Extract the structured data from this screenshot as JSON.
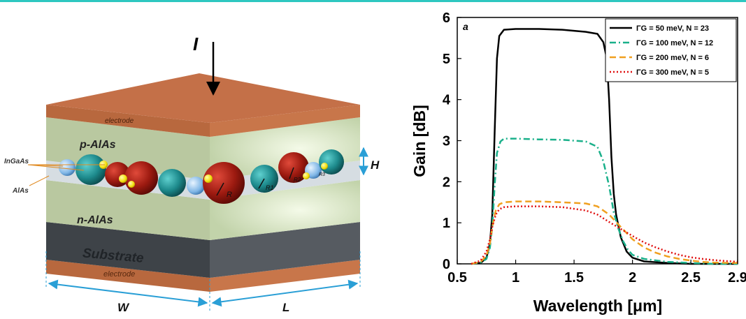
{
  "diagram": {
    "current_label": "I",
    "layers": {
      "top_electrode": "electrode",
      "p_layer": "p-AlAs",
      "n_layer": "n-AlAs",
      "substrate": "Substrate",
      "bottom_electrode": "electrode"
    },
    "callouts": {
      "dot_material": "InGaAs",
      "matrix_material": "AlAs"
    },
    "dimensions": {
      "height": "H",
      "width": "W",
      "length": "L"
    },
    "radius_labels": [
      "R",
      "R1",
      "R2",
      "R3"
    ],
    "colors": {
      "electrode": "#c8764a",
      "layer_green": "#c7d6b0",
      "substrate": "#4a4f54",
      "dot_red": "#9c1a10",
      "dot_teal": "#1d8a8c",
      "dot_blue": "#7fb6e6",
      "dot_yellow": "#f2df0a",
      "dimension_line": "#2a9fd6"
    }
  },
  "chart_data": {
    "type": "line",
    "panel_label": "a",
    "xlabel": "Wavelength [μm]",
    "ylabel": "Gain [dB]",
    "xlim": [
      0.5,
      2.9
    ],
    "ylim": [
      0,
      6
    ],
    "xticks": [
      0.5,
      1,
      1.5,
      2,
      2.5,
      2.9
    ],
    "xtick_labels": [
      "0.5",
      "1",
      "1.5",
      "2",
      "2.5",
      "2.9"
    ],
    "yticks": [
      0,
      1,
      2,
      3,
      4,
      5,
      6
    ],
    "ytick_labels": [
      "0",
      "1",
      "2",
      "3",
      "4",
      "5",
      "6"
    ],
    "grid": false,
    "legend_position": "top-right",
    "series": [
      {
        "name": "ΓG = 50 meV,   N = 23",
        "color": "#000000",
        "dash": "solid",
        "x": [
          0.62,
          0.7,
          0.75,
          0.78,
          0.8,
          0.82,
          0.84,
          0.86,
          0.9,
          1.0,
          1.2,
          1.4,
          1.6,
          1.7,
          1.75,
          1.78,
          1.8,
          1.82,
          1.84,
          1.86,
          1.9,
          1.95,
          2.0,
          2.1,
          2.3,
          2.5,
          2.9
        ],
        "y": [
          0,
          0.02,
          0.15,
          0.5,
          1.2,
          3.2,
          5.0,
          5.55,
          5.7,
          5.72,
          5.72,
          5.7,
          5.65,
          5.6,
          5.4,
          5.0,
          4.0,
          2.6,
          1.7,
          1.2,
          0.65,
          0.3,
          0.15,
          0.06,
          0.02,
          0,
          0
        ]
      },
      {
        "name": "ΓG = 100 meV, N = 12",
        "color": "#1ab08a",
        "dash": "dashdot",
        "x": [
          0.62,
          0.7,
          0.75,
          0.78,
          0.8,
          0.82,
          0.84,
          0.87,
          0.9,
          1.0,
          1.2,
          1.4,
          1.6,
          1.7,
          1.75,
          1.8,
          1.84,
          1.88,
          1.92,
          1.96,
          2.0,
          2.1,
          2.3,
          2.5,
          2.7,
          2.9
        ],
        "y": [
          0,
          0.03,
          0.12,
          0.4,
          0.9,
          1.9,
          2.7,
          2.98,
          3.05,
          3.05,
          3.03,
          3.02,
          2.98,
          2.85,
          2.5,
          1.9,
          1.25,
          0.85,
          0.55,
          0.35,
          0.22,
          0.12,
          0.05,
          0.02,
          0,
          0
        ]
      },
      {
        "name": "ΓG = 200 meV, N = 6",
        "color": "#f0a020",
        "dash": "dashed",
        "x": [
          0.62,
          0.7,
          0.75,
          0.78,
          0.8,
          0.83,
          0.86,
          0.9,
          1.0,
          1.2,
          1.4,
          1.6,
          1.7,
          1.8,
          1.9,
          2.0,
          2.1,
          2.2,
          2.3,
          2.4,
          2.5,
          2.6,
          2.7,
          2.9
        ],
        "y": [
          0,
          0.05,
          0.2,
          0.5,
          0.9,
          1.3,
          1.45,
          1.5,
          1.52,
          1.52,
          1.5,
          1.47,
          1.4,
          1.2,
          0.9,
          0.6,
          0.4,
          0.27,
          0.18,
          0.12,
          0.08,
          0.05,
          0.03,
          0.02
        ]
      },
      {
        "name": "ΓG = 300 meV, N = 5",
        "color": "#e01010",
        "dash": "dotted",
        "x": [
          0.62,
          0.7,
          0.75,
          0.78,
          0.8,
          0.83,
          0.86,
          0.9,
          1.0,
          1.2,
          1.4,
          1.6,
          1.7,
          1.8,
          1.9,
          2.0,
          2.1,
          2.2,
          2.3,
          2.4,
          2.5,
          2.6,
          2.7,
          2.8,
          2.9
        ],
        "y": [
          0,
          0.08,
          0.3,
          0.6,
          0.9,
          1.2,
          1.33,
          1.38,
          1.4,
          1.4,
          1.38,
          1.3,
          1.2,
          1.02,
          0.85,
          0.68,
          0.52,
          0.4,
          0.3,
          0.22,
          0.16,
          0.12,
          0.09,
          0.07,
          0.05
        ]
      }
    ]
  }
}
